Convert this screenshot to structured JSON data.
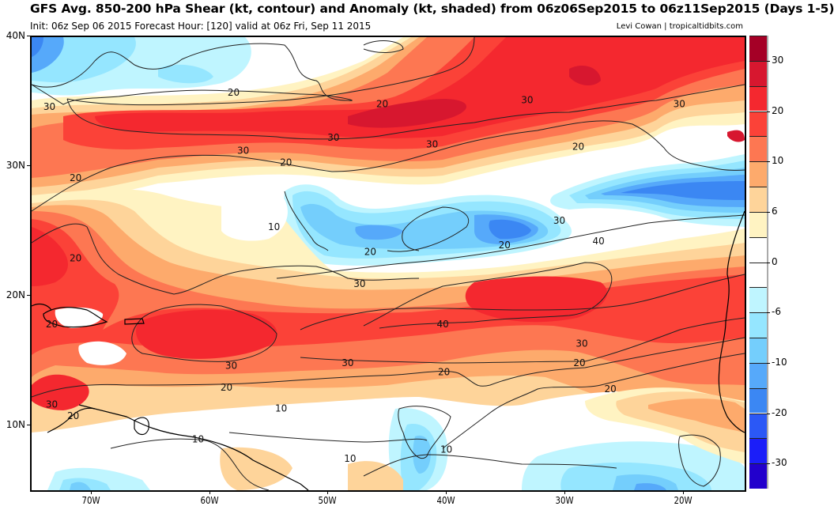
{
  "header": {
    "title": "GFS Avg. 850-200 hPa Shear (kt, contour) and Anomaly (kt, shaded) from 06z06Sep2015 to 06z11Sep2015 (Days 1-5)",
    "subtitle": "Init: 06z Sep 06 2015   Forecast Hour: [120]   valid at 06z Fri, Sep 11 2015",
    "credit": "Levi Cowan | tropicaltidbits.com"
  },
  "map": {
    "region": "Tropical Atlantic",
    "lat_range": [
      5,
      40
    ],
    "lon_range": [
      -75,
      -15
    ],
    "lat_ticks": [
      "40N",
      "30N",
      "20N",
      "10N"
    ],
    "lon_ticks": [
      "70W",
      "60W",
      "50W",
      "40W",
      "30W",
      "20W"
    ],
    "contour_labels": [
      {
        "text": "20",
        "lon": -58,
        "lat": 35.7
      },
      {
        "text": "20",
        "lon": -45.5,
        "lat": 34.8
      },
      {
        "text": "20",
        "lon": -29,
        "lat": 31.5
      },
      {
        "text": "20",
        "lon": -53.6,
        "lat": 30.3
      },
      {
        "text": "20",
        "lon": -71.3,
        "lat": 29.1
      },
      {
        "text": "30",
        "lon": -73.5,
        "lat": 34.6
      },
      {
        "text": "30",
        "lon": -49.6,
        "lat": 32.2
      },
      {
        "text": "30",
        "lon": -41.3,
        "lat": 31.7
      },
      {
        "text": "30",
        "lon": -57.2,
        "lat": 31.2
      },
      {
        "text": "30",
        "lon": -33.3,
        "lat": 35.1
      },
      {
        "text": "30",
        "lon": -20.5,
        "lat": 34.8
      },
      {
        "text": "20",
        "lon": -71.3,
        "lat": 22.9
      },
      {
        "text": "20",
        "lon": -46.5,
        "lat": 23.4
      },
      {
        "text": "20",
        "lon": -35.2,
        "lat": 23.9
      },
      {
        "text": "10",
        "lon": -54.6,
        "lat": 25.3
      },
      {
        "text": "30",
        "lon": -30.6,
        "lat": 25.8
      },
      {
        "text": "40",
        "lon": -27.3,
        "lat": 24.2
      },
      {
        "text": "30",
        "lon": -47.4,
        "lat": 20.9
      },
      {
        "text": "40",
        "lon": -40.4,
        "lat": 17.8
      },
      {
        "text": "20",
        "lon": -73.3,
        "lat": 17.8
      },
      {
        "text": "30",
        "lon": -28.7,
        "lat": 16.3
      },
      {
        "text": "30",
        "lon": -58.2,
        "lat": 14.6
      },
      {
        "text": "30",
        "lon": -48.4,
        "lat": 14.8
      },
      {
        "text": "30",
        "lon": -73.3,
        "lat": 11.6
      },
      {
        "text": "20",
        "lon": -58.6,
        "lat": 12.9
      },
      {
        "text": "20",
        "lon": -40.3,
        "lat": 14.1
      },
      {
        "text": "20",
        "lon": -28.9,
        "lat": 14.8
      },
      {
        "text": "20",
        "lon": -26.3,
        "lat": 12.8
      },
      {
        "text": "20",
        "lon": -71.5,
        "lat": 10.7
      },
      {
        "text": "10",
        "lon": -54,
        "lat": 11.3
      },
      {
        "text": "10",
        "lon": -61,
        "lat": 8.9
      },
      {
        "text": "10",
        "lon": -48.2,
        "lat": 7.4
      },
      {
        "text": "10",
        "lon": -40.1,
        "lat": 8.1
      }
    ]
  },
  "colorbar": {
    "levels": [
      35,
      30,
      25,
      20,
      15,
      10,
      8,
      6,
      3,
      0,
      -3,
      -6,
      -8,
      -10,
      -15,
      -20,
      -25,
      -30,
      -35
    ],
    "colors": [
      "#a50026",
      "#d7172f",
      "#f4282f",
      "#fb4238",
      "#fd7752",
      "#fdaa6c",
      "#fed49a",
      "#fff3c2",
      "#ffffff",
      "#ffffff",
      "#bff5ff",
      "#95e6ff",
      "#74cefc",
      "#56a9fa",
      "#3b87f3",
      "#2b58f6",
      "#1b1ef9",
      "#2200cc"
    ],
    "tick_labels": [
      "30",
      "20",
      "10",
      "6",
      "0",
      "-6",
      "-10",
      "-20",
      "-30"
    ]
  }
}
